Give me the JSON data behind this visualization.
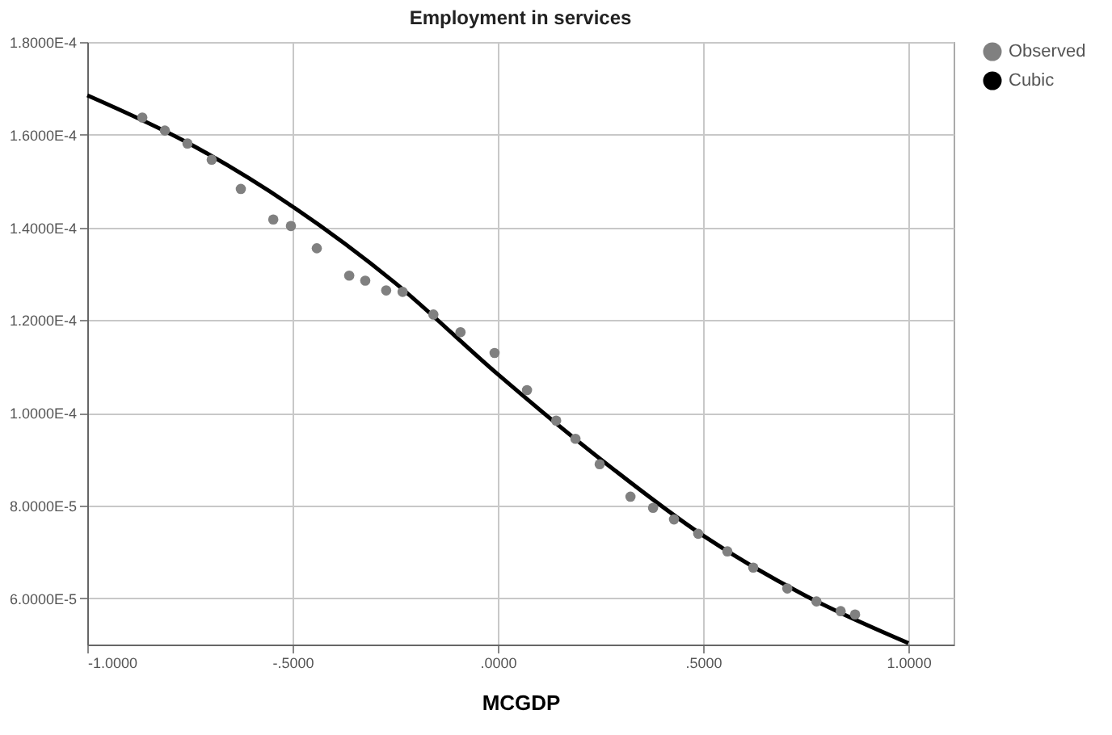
{
  "chart_data": {
    "type": "scatter",
    "title": "Employment in services",
    "xlabel": "MCGDP",
    "xlim": [
      -1,
      1.11
    ],
    "ylim": [
      5e-05,
      0.00018
    ],
    "xticks": [
      {
        "value": -1,
        "label": "-1.0000"
      },
      {
        "value": -0.5,
        "label": "-.5000"
      },
      {
        "value": 0,
        "label": ".0000"
      },
      {
        "value": 0.5,
        "label": ".5000"
      },
      {
        "value": 1,
        "label": "1.0000"
      }
    ],
    "yticks": [
      {
        "value": 6e-05,
        "label": "6.0000E-5"
      },
      {
        "value": 8e-05,
        "label": "8.0000E-5"
      },
      {
        "value": 0.0001,
        "label": "1.0000E-4"
      },
      {
        "value": 0.00012,
        "label": "1.2000E-4"
      },
      {
        "value": 0.00014,
        "label": "1.4000E-4"
      },
      {
        "value": 0.00016,
        "label": "1.6000E-4"
      },
      {
        "value": 0.00018,
        "label": "1.8000E-4"
      }
    ],
    "grid": true,
    "legend": "top right",
    "series": [
      {
        "name": "Observed",
        "marker": "circle",
        "color": "#808080",
        "x": [
          -0.866,
          -0.811,
          -0.756,
          -0.697,
          -0.626,
          -0.547,
          -0.504,
          -0.441,
          -0.362,
          -0.323,
          -0.272,
          -0.232,
          -0.157,
          -0.091,
          -0.008,
          0.071,
          0.142,
          0.189,
          0.248,
          0.323,
          0.378,
          0.429,
          0.488,
          0.559,
          0.622,
          0.705,
          0.776,
          0.835,
          0.87
        ],
        "values": [
          0.0001637,
          0.0001609,
          0.0001581,
          0.0001546,
          0.0001483,
          0.0001417,
          0.0001403,
          0.0001355,
          0.0001296,
          0.0001285,
          0.0001264,
          0.0001261,
          0.0001212,
          0.0001174,
          0.0001129,
          0.0001049,
          9.83e-05,
          9.44e-05,
          8.89e-05,
          8.19e-05,
          7.95e-05,
          7.7e-05,
          7.39e-05,
          7.01e-05,
          6.66e-05,
          6.21e-05,
          5.93e-05,
          5.72e-05,
          5.65e-05
        ]
      },
      {
        "name": "Cubic",
        "type": "line",
        "color": "#000000",
        "x": [
          -1,
          -0.75,
          -0.5,
          -0.25,
          0,
          0.25,
          0.5,
          0.75,
          1
        ],
        "values": [
          0.0001685,
          0.000158,
          0.0001445,
          0.000128,
          0.0001083,
          9e-05,
          7.35e-05,
          6.05e-05,
          5.03e-05
        ]
      }
    ]
  }
}
